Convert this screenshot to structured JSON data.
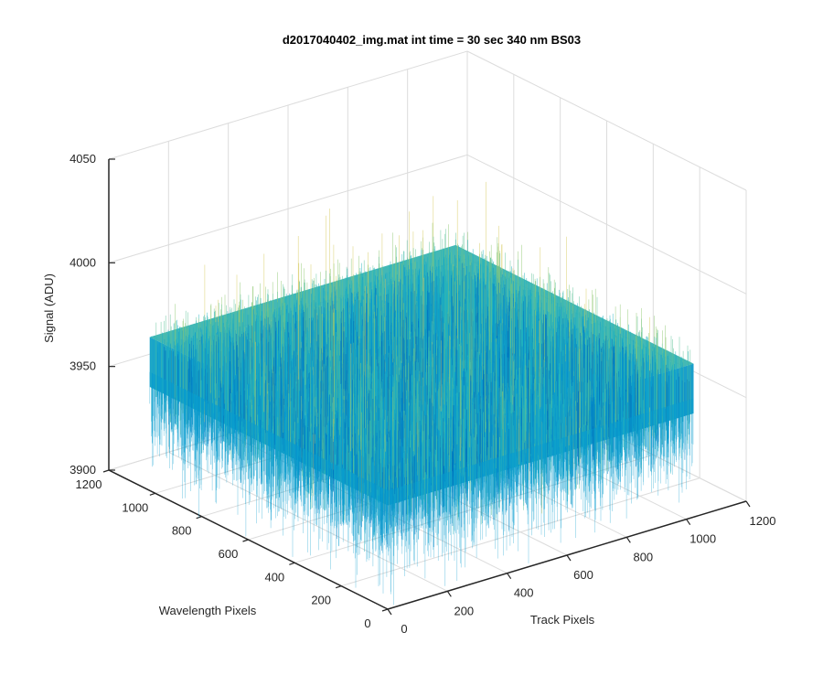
{
  "chart_data": {
    "type": "surface",
    "title": "d2017040402_img.mat int time = 30 sec  340 nm BS03",
    "xlabel": "Track Pixels",
    "ylabel": "Wavelength Pixels",
    "zlabel": "Signal (ADU)",
    "xlim": [
      0,
      1200
    ],
    "ylim": [
      0,
      1200
    ],
    "zlim": [
      3900,
      4050
    ],
    "x_ticks": [
      "0",
      "200",
      "400",
      "600",
      "800",
      "1000",
      "1200"
    ],
    "y_ticks": [
      "0",
      "200",
      "400",
      "600",
      "800",
      "1000",
      "1200"
    ],
    "z_ticks": [
      "3900",
      "3950",
      "4000",
      "4050"
    ],
    "grid": true,
    "view": "3d",
    "data_extent": {
      "x": [
        0,
        1024
      ],
      "y": [
        0,
        1024
      ]
    },
    "signal_mean": 3962,
    "signal_spread": 12,
    "signal_max_spike": 4025,
    "colormap": [
      "#0072bd",
      "#0a9ccf",
      "#22b3bd",
      "#5cc197",
      "#8fc870",
      "#d6c95e"
    ]
  }
}
